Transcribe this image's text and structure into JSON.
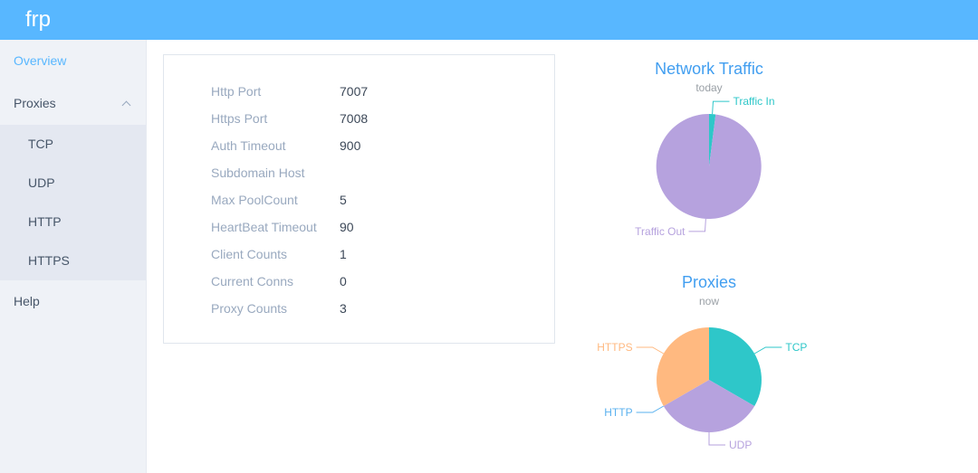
{
  "header": {
    "logo_text": "frp"
  },
  "colors": {
    "header_bg": "#58b7ff",
    "accent_blue": "#58b7ff",
    "title_blue": "#419ef0",
    "sidebar_bg": "#eff2f7",
    "submenu_bg": "#e4e8f1",
    "menu_text": "#475669",
    "label_gray": "#99a9bf",
    "value_dark": "#3c4858",
    "panel_border": "#e0e6ed"
  },
  "sidebar": {
    "items": [
      {
        "label": "Overview"
      },
      {
        "label": "Proxies"
      },
      {
        "label": "TCP"
      },
      {
        "label": "UDP"
      },
      {
        "label": "HTTP"
      },
      {
        "label": "HTTPS"
      },
      {
        "label": "Help"
      }
    ]
  },
  "overview_panel": {
    "rows": [
      {
        "label": "Http Port",
        "value": "7007"
      },
      {
        "label": "Https Port",
        "value": "7008"
      },
      {
        "label": "Auth Timeout",
        "value": "900"
      },
      {
        "label": "Subdomain Host",
        "value": ""
      },
      {
        "label": "Max PoolCount",
        "value": "5"
      },
      {
        "label": "HeartBeat Timeout",
        "value": "90"
      },
      {
        "label": "Client Counts",
        "value": "1"
      },
      {
        "label": "Current Conns",
        "value": "0"
      },
      {
        "label": "Proxy Counts",
        "value": "3"
      }
    ]
  },
  "chart_data": [
    {
      "type": "pie",
      "title": "Network Traffic",
      "subtitle": "today",
      "legend_position": "none",
      "slices": [
        {
          "label": "Traffic In",
          "value": 2,
          "color": "#2ec7c9"
        },
        {
          "label": "Traffic Out",
          "value": 98,
          "color": "#b6a2de"
        }
      ]
    },
    {
      "type": "pie",
      "title": "Proxies",
      "subtitle": "now",
      "legend_position": "none",
      "slices": [
        {
          "label": "TCP",
          "value": 1,
          "color": "#2ec7c9"
        },
        {
          "label": "UDP",
          "value": 1,
          "color": "#b6a2de"
        },
        {
          "label": "HTTP",
          "value": 0,
          "color": "#5ab1ef"
        },
        {
          "label": "HTTPS",
          "value": 1,
          "color": "#ffb980"
        }
      ]
    }
  ]
}
